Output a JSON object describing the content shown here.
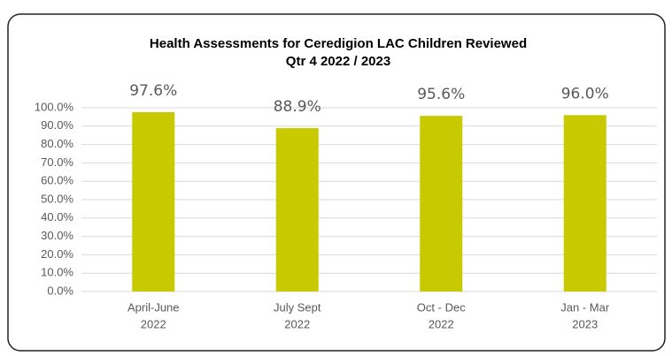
{
  "chart_data": {
    "type": "bar",
    "title": [
      "Health Assessments for Ceredigion LAC Children Reviewed",
      "Qtr 4 2022 / 2023"
    ],
    "categories": [
      [
        "April-June",
        "2022"
      ],
      [
        "July  Sept",
        "2022"
      ],
      [
        "Oct - Dec",
        "2022"
      ],
      [
        "Jan - Mar",
        "2023"
      ]
    ],
    "values": [
      97.6,
      88.9,
      95.6,
      96.0
    ],
    "value_labels": [
      "97.6%",
      "88.9%",
      "95.6%",
      "96.0%"
    ],
    "color": "#c9c900",
    "ylim": [
      0,
      100
    ],
    "yticks": [
      {
        "value": 0,
        "label": "0.0%"
      },
      {
        "value": 10,
        "label": "10.0%"
      },
      {
        "value": 20,
        "label": "20.0%"
      },
      {
        "value": 30,
        "label": "30.0%"
      },
      {
        "value": 40,
        "label": "40.0%"
      },
      {
        "value": 50,
        "label": "50.0%"
      },
      {
        "value": 60,
        "label": "60.0%"
      },
      {
        "value": 70,
        "label": "70.0%"
      },
      {
        "value": 80,
        "label": "80.0%"
      },
      {
        "value": 90,
        "label": "90.0%"
      },
      {
        "value": 100,
        "label": "100.0%"
      }
    ],
    "grid": true
  }
}
